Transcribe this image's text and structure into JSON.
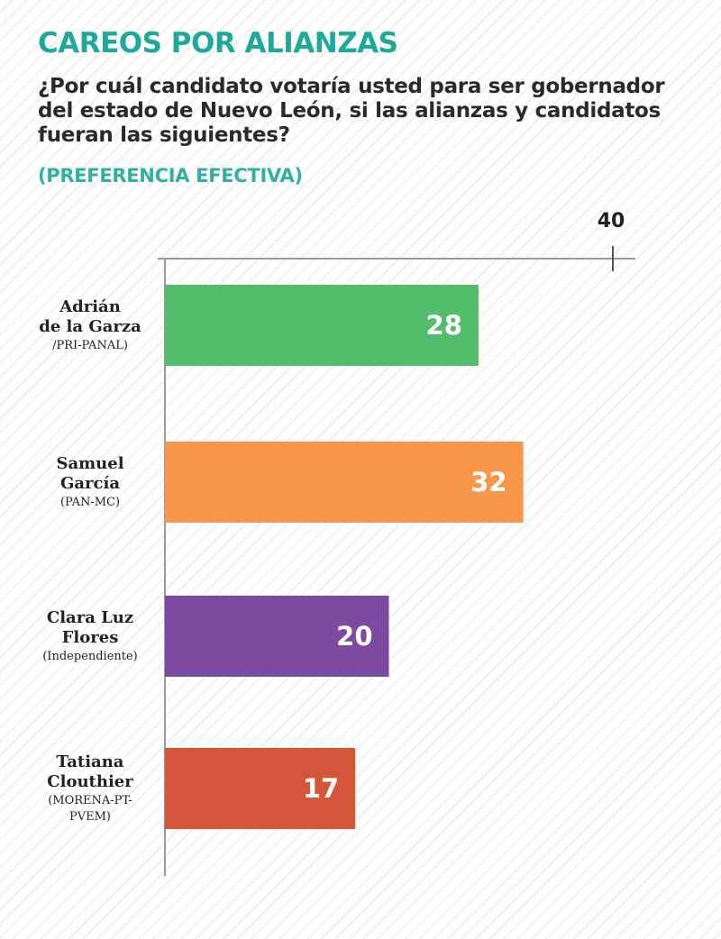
{
  "header": {
    "title": "CAREOS POR ALIANZAS",
    "question": "¿Por cuál candidato votaría usted para ser gobernador del estado de Nuevo León, si las alianzas y candidatos fueran las siguientes?",
    "subtitle": "(PREFERENCIA EFECTIVA)"
  },
  "chart_data": {
    "type": "bar",
    "orientation": "horizontal",
    "title": "CAREOS POR ALIANZAS",
    "subtitle": "(PREFERENCIA EFECTIVA)",
    "xlim": [
      0,
      40
    ],
    "ticks": [
      40
    ],
    "categories": [
      {
        "name": "Adrián de la Garza",
        "lines": [
          "Adrián",
          "de la Garza"
        ],
        "party": [
          "/PRI-PANAL)"
        ]
      },
      {
        "name": "Samuel García",
        "lines": [
          "Samuel",
          "García"
        ],
        "party": [
          "(PAN-MC)"
        ]
      },
      {
        "name": "Clara Luz Flores",
        "lines": [
          "Clara Luz",
          "Flores"
        ],
        "party": [
          "(Independiente)"
        ]
      },
      {
        "name": "Tatiana Clouthier",
        "lines": [
          "Tatiana",
          "Clouthier"
        ],
        "party": [
          "(MORENA-PT-",
          "PVEM)"
        ]
      }
    ],
    "values": [
      28,
      32,
      20,
      17
    ],
    "bar_colors": [
      "#52bd6a",
      "#f7974c",
      "#7d4aa1",
      "#d5553a"
    ],
    "grid": false,
    "legend": "none"
  }
}
